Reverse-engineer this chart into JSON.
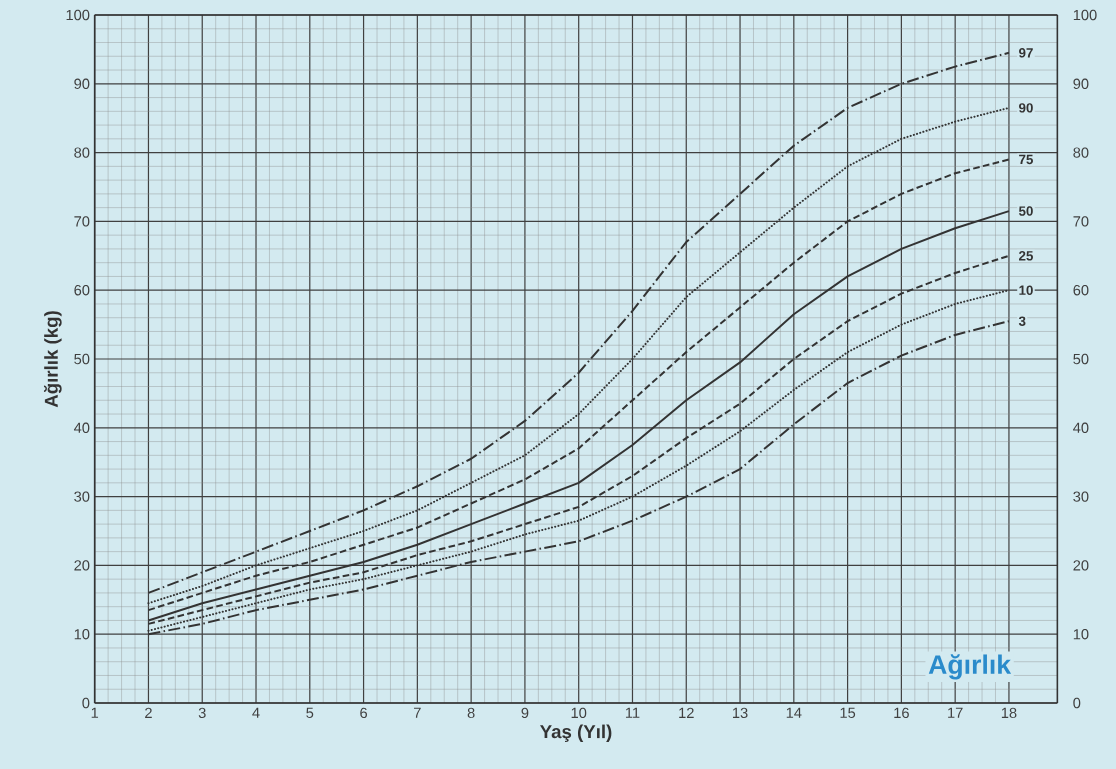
{
  "chart_data": {
    "type": "line",
    "title": "Ağırlık",
    "xlabel": "Yaş (Yıl)",
    "ylabel": "Ağırlık (kg)",
    "x": [
      2,
      3,
      4,
      5,
      6,
      7,
      8,
      9,
      10,
      11,
      12,
      13,
      14,
      15,
      16,
      17,
      18
    ],
    "series": [
      {
        "name": "97",
        "color": "#333333",
        "line_style": "dashdot",
        "values": [
          16,
          19,
          22,
          25,
          28,
          31.5,
          35.5,
          41,
          48,
          57,
          67,
          74,
          81,
          86.5,
          90,
          92.5,
          94.5
        ]
      },
      {
        "name": "90",
        "color": "#333333",
        "line_style": "dotted",
        "values": [
          14.5,
          17,
          20,
          22.5,
          25,
          28,
          32,
          36,
          42,
          50,
          59,
          65.5,
          72,
          78,
          82,
          84.5,
          86.5
        ]
      },
      {
        "name": "75",
        "color": "#333333",
        "line_style": "dashed",
        "values": [
          13.5,
          16,
          18.5,
          20.5,
          23,
          25.5,
          29,
          32.5,
          37,
          44,
          51,
          57.5,
          64,
          70,
          74,
          77,
          79
        ]
      },
      {
        "name": "50",
        "color": "#333333",
        "line_style": "solid",
        "values": [
          12,
          14.5,
          16.5,
          18.5,
          20.5,
          23,
          26,
          29,
          32,
          37.5,
          44,
          49.5,
          56.5,
          62,
          66,
          69,
          71.5
        ]
      },
      {
        "name": "25",
        "color": "#333333",
        "line_style": "dashed",
        "values": [
          11.5,
          13.5,
          15.5,
          17.5,
          19,
          21.5,
          23.5,
          26,
          28.5,
          33,
          38.5,
          43.5,
          50,
          55.5,
          59.5,
          62.5,
          65
        ]
      },
      {
        "name": "10",
        "color": "#333333",
        "line_style": "dotted",
        "values": [
          10.5,
          12.5,
          14.5,
          16.5,
          18,
          20,
          22,
          24.5,
          26.5,
          30,
          34.5,
          39.5,
          45.5,
          51,
          55,
          58,
          60
        ]
      },
      {
        "name": "3",
        "color": "#333333",
        "line_style": "dashdot",
        "values": [
          10,
          11.5,
          13.5,
          15,
          16.5,
          18.5,
          20.5,
          22,
          23.5,
          26.5,
          30,
          34,
          40.5,
          46.5,
          50.5,
          53.5,
          55.5
        ]
      }
    ],
    "xlim": [
      1,
      18.9
    ],
    "xticks": [
      1,
      2,
      3,
      4,
      5,
      6,
      7,
      8,
      9,
      10,
      11,
      12,
      13,
      14,
      15,
      16,
      17,
      18
    ],
    "ylim": [
      0,
      100
    ],
    "yticks": [
      0,
      10,
      20,
      30,
      40,
      50,
      60,
      70,
      80,
      90,
      100
    ],
    "y2lim": [
      0,
      100
    ],
    "y2ticks": [
      0,
      10,
      20,
      30,
      40,
      50,
      60,
      70,
      80,
      90,
      100
    ],
    "grid": true
  }
}
